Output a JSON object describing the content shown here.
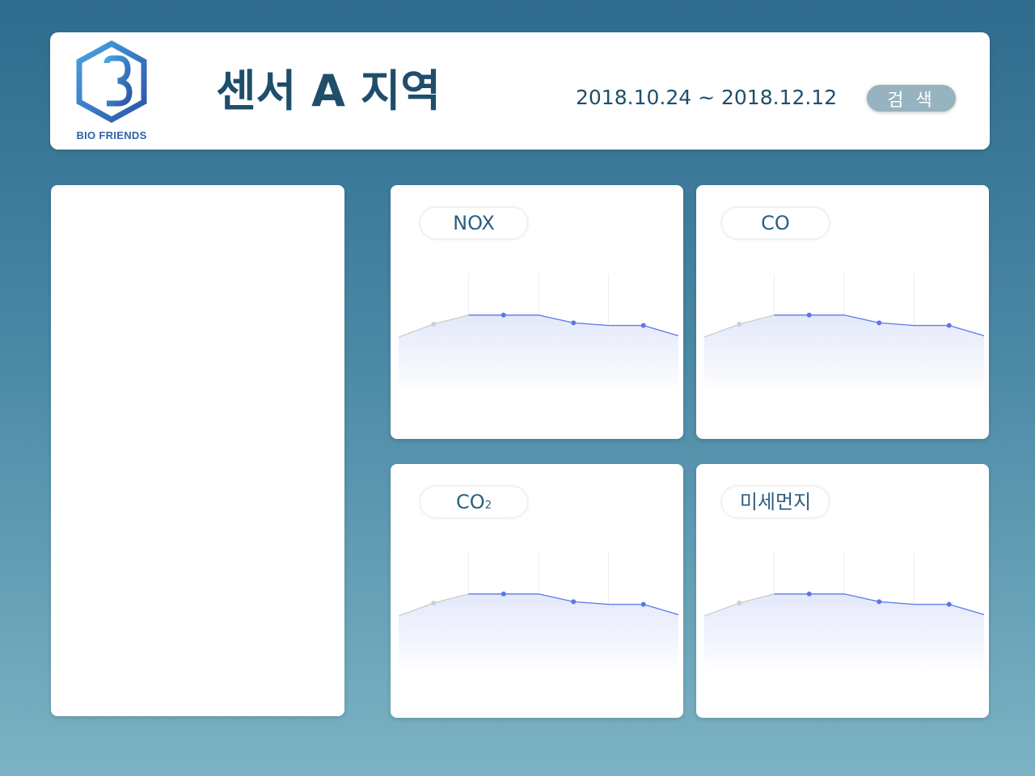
{
  "header": {
    "logo_text": "BIO FRIENDS",
    "title": "센서 A 지역",
    "date_range": "2018.10.24 ~ 2018.12.12",
    "search_label": "검 색"
  },
  "colors": {
    "header_text": "#1f4e6b",
    "logo_blue": "#2f63a8",
    "search_button": "#96b3bf",
    "line": "#5a78e8",
    "line_gray": "#cccccc"
  },
  "icons": {
    "logo": "hexagon-fb-logo-icon"
  },
  "cards": [
    {
      "label": "NOX"
    },
    {
      "label": "CO"
    },
    {
      "label": "CO",
      "label_sub": "2"
    },
    {
      "label": "미세먼지"
    }
  ],
  "chart_data": {
    "type": "line",
    "x": [
      0,
      1,
      2,
      3,
      4,
      5,
      6,
      7,
      8
    ],
    "values": [
      45,
      55,
      62,
      62,
      62,
      56,
      54,
      54,
      46
    ],
    "highlight_index_start": 2,
    "ylim": [
      0,
      100
    ],
    "grid": true
  }
}
